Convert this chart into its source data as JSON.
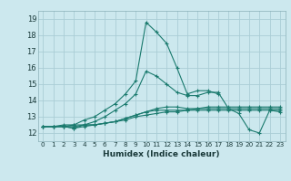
{
  "xlabel": "Humidex (Indice chaleur)",
  "bg_color": "#cce8ee",
  "grid_color": "#aacdd5",
  "line_color": "#1a7a6e",
  "xlim": [
    -0.5,
    23.5
  ],
  "ylim": [
    11.5,
    19.5
  ],
  "yticks": [
    12,
    13,
    14,
    15,
    16,
    17,
    18,
    19
  ],
  "xticks": [
    0,
    1,
    2,
    3,
    4,
    5,
    6,
    7,
    8,
    9,
    10,
    11,
    12,
    13,
    14,
    15,
    16,
    17,
    18,
    19,
    20,
    21,
    22,
    23
  ],
  "lines": [
    {
      "x": [
        0,
        1,
        2,
        3,
        4,
        5,
        6,
        7,
        8,
        9,
        10,
        11,
        12,
        13,
        14,
        15,
        16,
        17,
        18,
        19,
        20,
        21,
        22,
        23
      ],
      "y": [
        12.4,
        12.4,
        12.4,
        12.5,
        12.5,
        12.5,
        12.6,
        12.7,
        12.8,
        13.0,
        13.1,
        13.2,
        13.3,
        13.3,
        13.4,
        13.5,
        13.6,
        13.6,
        13.6,
        13.6,
        13.6,
        13.6,
        13.6,
        13.6
      ]
    },
    {
      "x": [
        0,
        1,
        2,
        3,
        4,
        5,
        6,
        7,
        8,
        9,
        10,
        11,
        12,
        13,
        14,
        15,
        16,
        17,
        18,
        19,
        20,
        21,
        22,
        23
      ],
      "y": [
        12.4,
        12.4,
        12.4,
        12.4,
        12.5,
        12.5,
        12.6,
        12.7,
        12.9,
        13.1,
        13.3,
        13.4,
        13.4,
        13.4,
        13.4,
        13.4,
        13.4,
        13.4,
        13.4,
        13.4,
        13.4,
        13.4,
        13.4,
        13.4
      ]
    },
    {
      "x": [
        0,
        1,
        2,
        3,
        4,
        5,
        6,
        7,
        8,
        9,
        10,
        11,
        12,
        13,
        14,
        15,
        16,
        17,
        18,
        19,
        20,
        21,
        22,
        23
      ],
      "y": [
        12.4,
        12.4,
        12.4,
        12.3,
        12.4,
        12.5,
        12.6,
        12.7,
        12.9,
        13.1,
        13.3,
        13.5,
        13.6,
        13.6,
        13.5,
        13.5,
        13.5,
        13.5,
        13.5,
        13.5,
        13.5,
        13.5,
        13.5,
        13.5
      ]
    },
    {
      "x": [
        0,
        1,
        2,
        3,
        4,
        5,
        6,
        7,
        8,
        9,
        10,
        11,
        12,
        13,
        14,
        15,
        16,
        17,
        18,
        19,
        20,
        21,
        22,
        23
      ],
      "y": [
        12.4,
        12.4,
        12.4,
        12.3,
        12.5,
        12.7,
        13.0,
        13.4,
        13.8,
        14.4,
        15.8,
        15.5,
        15.0,
        14.5,
        14.3,
        14.3,
        14.5,
        14.5,
        13.5,
        13.2,
        12.2,
        12.0,
        13.4,
        13.3
      ]
    },
    {
      "x": [
        0,
        1,
        2,
        3,
        4,
        5,
        6,
        7,
        8,
        9,
        10,
        11,
        12,
        13,
        14,
        15,
        16,
        17,
        18,
        19,
        20,
        21,
        22,
        23
      ],
      "y": [
        12.4,
        12.4,
        12.5,
        12.5,
        12.8,
        13.0,
        13.4,
        13.8,
        14.4,
        15.2,
        18.8,
        18.2,
        17.5,
        16.0,
        14.4,
        14.6,
        14.6,
        14.4,
        null,
        null,
        null,
        null,
        null,
        null
      ]
    }
  ]
}
